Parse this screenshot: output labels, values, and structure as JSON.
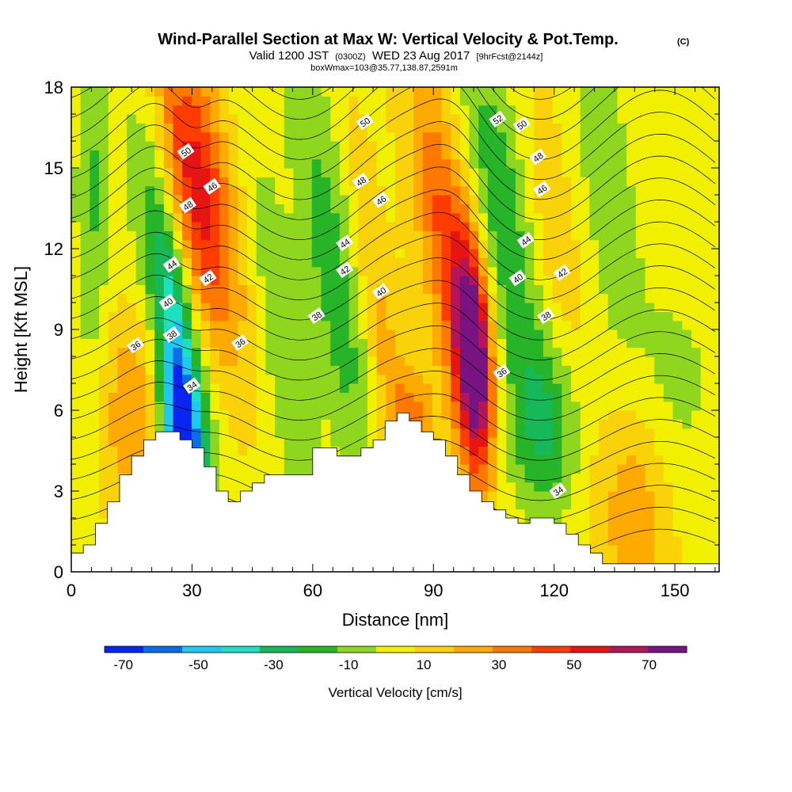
{
  "header": {
    "title": "Wind-Parallel Section at Max W: Vertical Velocity & Pot.Temp.",
    "copyright": "(C)",
    "valid_prefix": "Valid 1200 JST",
    "valid_utc": "(0300Z)",
    "valid_date": "WED 23 Aug 2017",
    "forecast": "[9hrFcst@2144z]",
    "boxwmax": "boxWmax=103@35.77,138.87,2591m"
  },
  "chart_data": {
    "type": "heatmap",
    "xlabel": "Distance [nm]",
    "ylabel": "Height [Kft MSL]",
    "xlim": [
      0,
      161
    ],
    "ylim": [
      0,
      18
    ],
    "xticks": [
      0,
      30,
      60,
      90,
      120,
      150
    ],
    "yticks": [
      0,
      3,
      6,
      9,
      12,
      15,
      18
    ],
    "colorbar": {
      "label": "Vertical Velocity [cm/s]",
      "ticks": [
        "-70",
        "-50",
        "-30",
        "-10",
        "10",
        "30",
        "50",
        "70"
      ],
      "tick_values": [
        -70,
        -50,
        -30,
        -10,
        10,
        30,
        50,
        70
      ],
      "range": [
        -75,
        80
      ],
      "colors": [
        "#0a24f2",
        "#0a6eea",
        "#1ec8f0",
        "#1ee0c0",
        "#16b85a",
        "#28b428",
        "#8fd61e",
        "#f0f000",
        "#fad20a",
        "#ffaa00",
        "#ff7800",
        "#ff3c00",
        "#e61414",
        "#b4145a",
        "#781482"
      ]
    },
    "terrain": [
      [
        0,
        0.7
      ],
      [
        3,
        0.7
      ],
      [
        3,
        1.0
      ],
      [
        6,
        1.0
      ],
      [
        6,
        1.8
      ],
      [
        9,
        1.8
      ],
      [
        9,
        2.6
      ],
      [
        12,
        2.6
      ],
      [
        12,
        3.6
      ],
      [
        15,
        3.6
      ],
      [
        15,
        4.3
      ],
      [
        18,
        4.3
      ],
      [
        18,
        4.9
      ],
      [
        21,
        4.9
      ],
      [
        21,
        5.2
      ],
      [
        27,
        5.2
      ],
      [
        27,
        4.9
      ],
      [
        30,
        4.9
      ],
      [
        30,
        4.6
      ],
      [
        33,
        4.6
      ],
      [
        33,
        3.9
      ],
      [
        36,
        3.9
      ],
      [
        36,
        3.0
      ],
      [
        39,
        3.0
      ],
      [
        39,
        2.6
      ],
      [
        42,
        2.6
      ],
      [
        42,
        3.0
      ],
      [
        45,
        3.0
      ],
      [
        45,
        3.3
      ],
      [
        48,
        3.3
      ],
      [
        48,
        3.6
      ],
      [
        60,
        3.6
      ],
      [
        60,
        4.6
      ],
      [
        66,
        4.6
      ],
      [
        66,
        4.3
      ],
      [
        72,
        4.3
      ],
      [
        72,
        4.6
      ],
      [
        75,
        4.6
      ],
      [
        75,
        4.9
      ],
      [
        78,
        4.9
      ],
      [
        78,
        5.6
      ],
      [
        81,
        5.6
      ],
      [
        81,
        5.9
      ],
      [
        84,
        5.9
      ],
      [
        84,
        5.6
      ],
      [
        87,
        5.6
      ],
      [
        87,
        5.2
      ],
      [
        90,
        5.2
      ],
      [
        90,
        4.9
      ],
      [
        93,
        4.9
      ],
      [
        93,
        4.3
      ],
      [
        96,
        4.3
      ],
      [
        96,
        3.6
      ],
      [
        99,
        3.6
      ],
      [
        99,
        3.0
      ],
      [
        102,
        3.0
      ],
      [
        102,
        2.6
      ],
      [
        105,
        2.6
      ],
      [
        105,
        2.3
      ],
      [
        108,
        2.3
      ],
      [
        108,
        2.0
      ],
      [
        111,
        2.0
      ],
      [
        111,
        1.8
      ],
      [
        114,
        1.8
      ],
      [
        114,
        2.0
      ],
      [
        120,
        2.0
      ],
      [
        120,
        1.8
      ],
      [
        123,
        1.8
      ],
      [
        123,
        1.4
      ],
      [
        126,
        1.4
      ],
      [
        126,
        1.0
      ],
      [
        129,
        1.0
      ],
      [
        129,
        0.7
      ],
      [
        132,
        0.7
      ],
      [
        132,
        0.3
      ],
      [
        161,
        0.3
      ]
    ],
    "w_features": [
      {
        "x": 31,
        "z": 14.0,
        "sx": 6,
        "sz": 4.0,
        "tilt": -0.32,
        "amp": 55
      },
      {
        "x": 27,
        "z": 8.0,
        "sx": 3.5,
        "sz": 4.0,
        "tilt": -0.32,
        "amp": -40
      },
      {
        "x": 27,
        "z": 5.0,
        "sx": 3.0,
        "sz": 1.8,
        "tilt": -0.2,
        "amp": -65
      },
      {
        "x": 24,
        "z": 12.0,
        "sx": 6,
        "sz": 5.0,
        "tilt": -0.32,
        "amp": -22
      },
      {
        "x": 100,
        "z": 8.0,
        "sx": 3.2,
        "sz": 3.0,
        "tilt": -0.1,
        "amp": 80
      },
      {
        "x": 93,
        "z": 12.5,
        "sx": 4.5,
        "sz": 4.5,
        "tilt": -0.28,
        "amp": 35
      },
      {
        "x": 108,
        "z": 13.0,
        "sx": 6,
        "sz": 5.0,
        "tilt": -0.32,
        "amp": -30
      },
      {
        "x": 85,
        "z": 5.5,
        "sx": 4.0,
        "sz": 1.5,
        "tilt": 0,
        "amp": 25
      },
      {
        "x": 65,
        "z": 11.0,
        "sx": 5,
        "sz": 6.0,
        "tilt": -0.32,
        "amp": -25
      },
      {
        "x": 53,
        "z": 8.0,
        "sx": 4,
        "sz": 6.0,
        "tilt": -0.32,
        "amp": -18
      },
      {
        "x": 78,
        "z": 8.0,
        "sx": 3,
        "sz": 5.0,
        "tilt": -0.32,
        "amp": 18
      },
      {
        "x": 118,
        "z": 5.5,
        "sx": 7,
        "sz": 2.5,
        "tilt": 0,
        "amp": -28
      },
      {
        "x": 15,
        "z": 6.0,
        "sx": 5,
        "sz": 2.5,
        "tilt": 0,
        "amp": 22
      },
      {
        "x": 140,
        "z": 2.5,
        "sx": 6,
        "sz": 3.0,
        "tilt": 0,
        "amp": 20
      },
      {
        "x": 150,
        "z": 7.0,
        "sx": 8,
        "sz": 3.0,
        "tilt": 0,
        "amp": -12
      },
      {
        "x": 5,
        "z": 14.0,
        "sx": 3,
        "sz": 5.0,
        "tilt": 0,
        "amp": -20
      },
      {
        "x": 133,
        "z": 14.0,
        "sx": 6,
        "sz": 5.0,
        "tilt": -0.2,
        "amp": -15
      },
      {
        "x": 120,
        "z": 11.0,
        "sx": 6,
        "sz": 5.0,
        "tilt": -0.3,
        "amp": 15
      }
    ],
    "theta_labels": [
      {
        "text": "50",
        "x": 28.5,
        "z": 15.6
      },
      {
        "text": "46",
        "x": 35,
        "z": 14.3
      },
      {
        "text": "48",
        "x": 29,
        "z": 13.6
      },
      {
        "text": "44",
        "x": 25,
        "z": 11.4
      },
      {
        "text": "42",
        "x": 34,
        "z": 10.9
      },
      {
        "text": "40",
        "x": 24,
        "z": 10.0
      },
      {
        "text": "38",
        "x": 25,
        "z": 8.8
      },
      {
        "text": "36",
        "x": 16,
        "z": 8.4
      },
      {
        "text": "36",
        "x": 42,
        "z": 8.5
      },
      {
        "text": "34",
        "x": 30,
        "z": 6.9
      },
      {
        "text": "50",
        "x": 73,
        "z": 16.7
      },
      {
        "text": "48",
        "x": 72,
        "z": 14.5
      },
      {
        "text": "46",
        "x": 77,
        "z": 13.8
      },
      {
        "text": "44",
        "x": 68,
        "z": 12.2
      },
      {
        "text": "42",
        "x": 68,
        "z": 11.2
      },
      {
        "text": "40",
        "x": 77,
        "z": 10.4
      },
      {
        "text": "38",
        "x": 61,
        "z": 9.5
      },
      {
        "text": "52",
        "x": 106,
        "z": 16.8
      },
      {
        "text": "50",
        "x": 112,
        "z": 16.6
      },
      {
        "text": "48",
        "x": 116,
        "z": 15.4
      },
      {
        "text": "46",
        "x": 117,
        "z": 14.2
      },
      {
        "text": "44",
        "x": 113,
        "z": 12.3
      },
      {
        "text": "42",
        "x": 122,
        "z": 11.1
      },
      {
        "text": "40",
        "x": 111,
        "z": 10.9
      },
      {
        "text": "38",
        "x": 118,
        "z": 9.5
      },
      {
        "text": "36",
        "x": 107,
        "z": 7.4
      },
      {
        "text": "34",
        "x": 121,
        "z": 3.0
      }
    ]
  }
}
